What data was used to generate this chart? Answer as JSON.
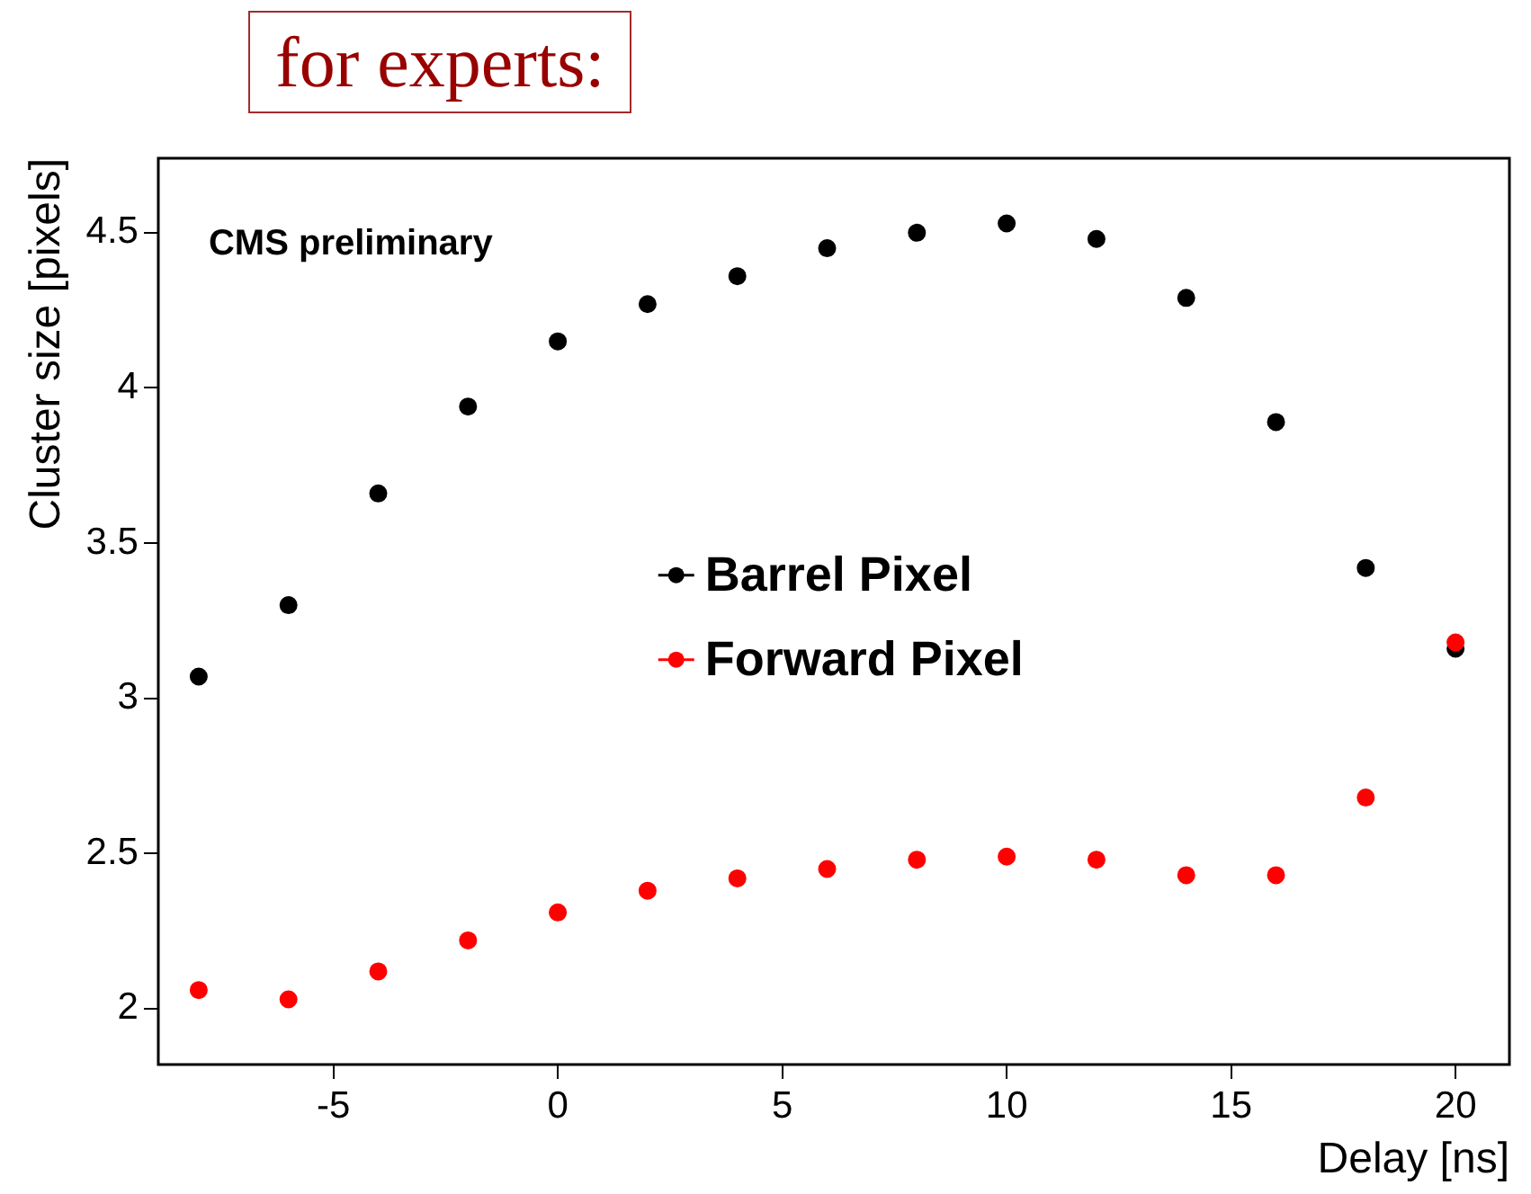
{
  "chart_data": {
    "type": "scatter",
    "title": "for experts:",
    "xlabel": "Delay [ns]",
    "ylabel": "Cluster size [pixels]",
    "annotations": [
      "CMS preliminary"
    ],
    "x": [
      -8,
      -6,
      -4,
      -2,
      0,
      2,
      4,
      6,
      8,
      10,
      12,
      14,
      16,
      18,
      20
    ],
    "series": [
      {
        "name": "Barrel Pixel",
        "color": "#000000",
        "values": [
          3.07,
          3.3,
          3.66,
          3.94,
          4.15,
          4.27,
          4.36,
          4.45,
          4.5,
          4.53,
          4.48,
          4.29,
          3.89,
          3.42,
          3.16
        ]
      },
      {
        "name": "Forward Pixel",
        "color": "#ff0000",
        "values": [
          2.06,
          2.03,
          2.12,
          2.22,
          2.31,
          2.38,
          2.42,
          2.45,
          2.48,
          2.49,
          2.48,
          2.43,
          2.43,
          2.68,
          3.18
        ]
      }
    ],
    "xlim": [
      -8.9,
      21.2
    ],
    "xticks": [
      -5,
      0,
      5,
      10,
      15,
      20
    ],
    "ylim": [
      1.82,
      4.74
    ],
    "yticks": [
      2,
      2.5,
      3,
      3.5,
      4,
      4.5
    ],
    "grid": false,
    "legend": "center",
    "marker": "circle"
  }
}
